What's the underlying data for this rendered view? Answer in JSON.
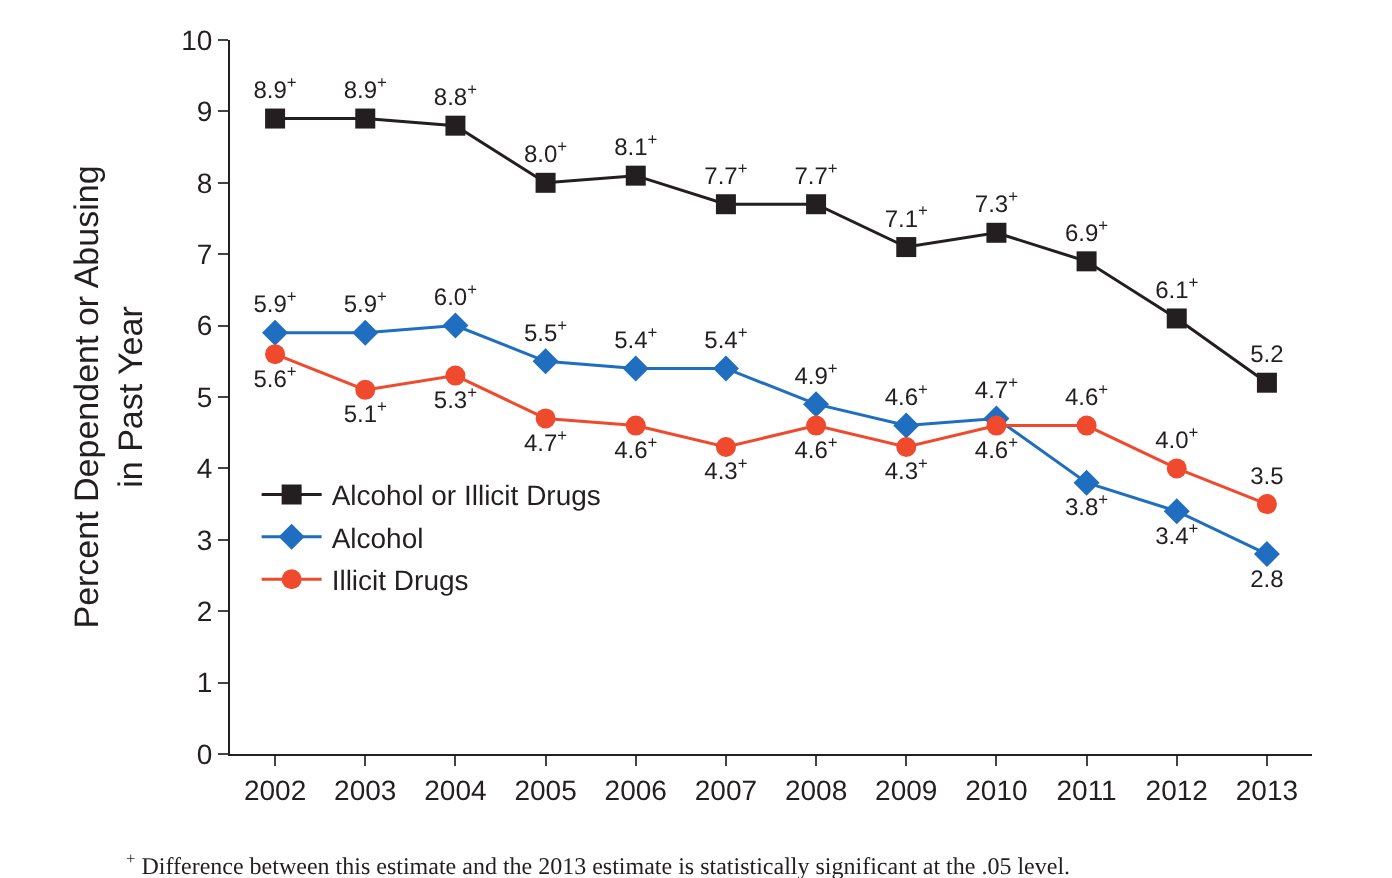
{
  "chart_data": {
    "type": "line",
    "ylabel": "Percent Dependent or Abusing\nin Past Year",
    "categories": [
      "2002",
      "2003",
      "2004",
      "2005",
      "2006",
      "2007",
      "2008",
      "2009",
      "2010",
      "2011",
      "2012",
      "2013"
    ],
    "ylim": [
      0,
      10
    ],
    "yticks": [
      0,
      1,
      2,
      3,
      4,
      5,
      6,
      7,
      8,
      9,
      10
    ],
    "legend": "bottom left",
    "data_labels": false,
    "series": [
      {
        "name": "Alcohol or Illicit Drugs",
        "color": "#231f20",
        "marker": "square",
        "values": [
          8.9,
          8.9,
          8.8,
          8.0,
          8.1,
          7.7,
          7.7,
          7.1,
          7.3,
          6.9,
          6.1,
          5.2
        ],
        "value_labels": [
          "8.9$^{+}$",
          "8.9$^{+}$",
          "8.8$^{+}$",
          "8.0$^{+}$",
          "8.1$^{+}$",
          "7.7$^{+}$",
          "7.7$^{+}$",
          "7.1$^{+}$",
          "7.3$^{+}$",
          "6.9$^{+}$",
          "6.1$^{+}$",
          "5.2"
        ]
      },
      {
        "name": "Alcohol",
        "color": "#1f6ebf",
        "marker": "diamond",
        "values": [
          5.9,
          5.9,
          6.0,
          5.5,
          5.4,
          5.4,
          4.9,
          4.6,
          4.7,
          3.8,
          3.4,
          2.8
        ],
        "value_labels": [
          "5.9$^{+}$",
          "5.9$^{+}$",
          "6.0$^{+}$",
          "5.5$^{+}$",
          "5.4$^{+}$",
          "5.4$^{+}$",
          "4.9$^{+}$",
          "4.6$^{+}$",
          "4.7$^{+}$",
          "3.8$^{+}$",
          "3.4$^{+}$",
          "2.8"
        ]
      },
      {
        "name": "Illicit Drugs",
        "color": "#f04a2e",
        "marker": "circle",
        "values": [
          5.6,
          5.1,
          5.3,
          4.7,
          4.6,
          4.3,
          4.6,
          4.3,
          4.6,
          4.6,
          4.0,
          3.5
        ],
        "value_labels": [
          "5.6$^{+}$",
          "5.1$^{+}$",
          "5.3$^{+}$",
          "4.7$^{+}$",
          "4.6$^{+}$",
          "4.3$^{+}$",
          "4.6$^{+}$",
          "4.3$^{+}$",
          "4.6$^{+}$",
          "4.6$^{+}$",
          "4.0$^{+}$",
          "3.5"
        ]
      }
    ],
    "annotations": [
      "$^{+}$ Difference between this estimate and the 2013 estimate is statistically significant at the .05 level."
    ]
  }
}
